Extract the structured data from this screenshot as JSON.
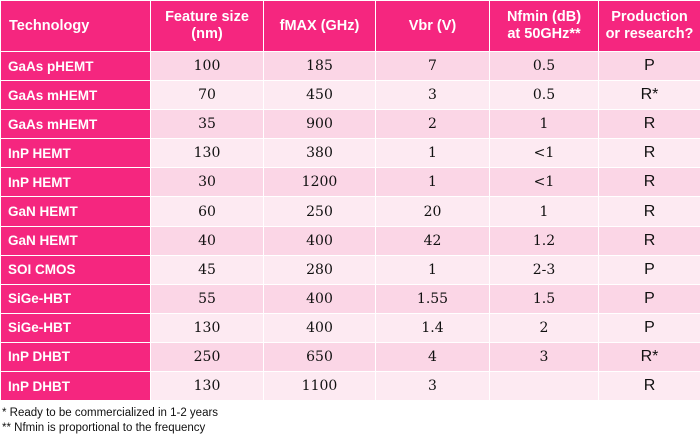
{
  "table": {
    "headers": [
      "Technology",
      "Feature size\n(nm)",
      "fMAX (GHz)",
      "Vbr (V)",
      "Nfmin (dB)\nat 50GHz**",
      "Production\nor research?"
    ],
    "rows": [
      [
        "GaAs pHEMT",
        "100",
        "185",
        "7",
        "0.5",
        "P"
      ],
      [
        "GaAs mHEMT",
        "70",
        "450",
        "3",
        "0.5",
        "R*"
      ],
      [
        "GaAs mHEMT",
        "35",
        "900",
        "2",
        "1",
        "R"
      ],
      [
        "InP HEMT",
        "130",
        "380",
        "1",
        "<1",
        "R"
      ],
      [
        "InP HEMT",
        "30",
        "1200",
        "1",
        "<1",
        "R"
      ],
      [
        "GaN HEMT",
        "60",
        "250",
        "20",
        "1",
        "R"
      ],
      [
        "GaN HEMT",
        "40",
        "400",
        "42",
        "1.2",
        "R"
      ],
      [
        "SOI CMOS",
        "45",
        "280",
        "1",
        "2-3",
        "P"
      ],
      [
        "SiGe-HBT",
        "55",
        "400",
        "1.55",
        "1.5",
        "P"
      ],
      [
        "SiGe-HBT",
        "130",
        "400",
        "1.4",
        "2",
        "P"
      ],
      [
        "InP DHBT",
        "250",
        "650",
        "4",
        "3",
        "R*"
      ],
      [
        "InP DHBT",
        "130",
        "1100",
        "3",
        "",
        "R"
      ]
    ]
  },
  "footnotes": [
    "* Ready to be commercialized in 1-2 years",
    "** Nfmin is proportional to the frequency"
  ],
  "colors": {
    "header_bg": "#f5267f",
    "row_odd_bg": "#fbd6e6",
    "row_even_bg": "#fdeaf2"
  }
}
